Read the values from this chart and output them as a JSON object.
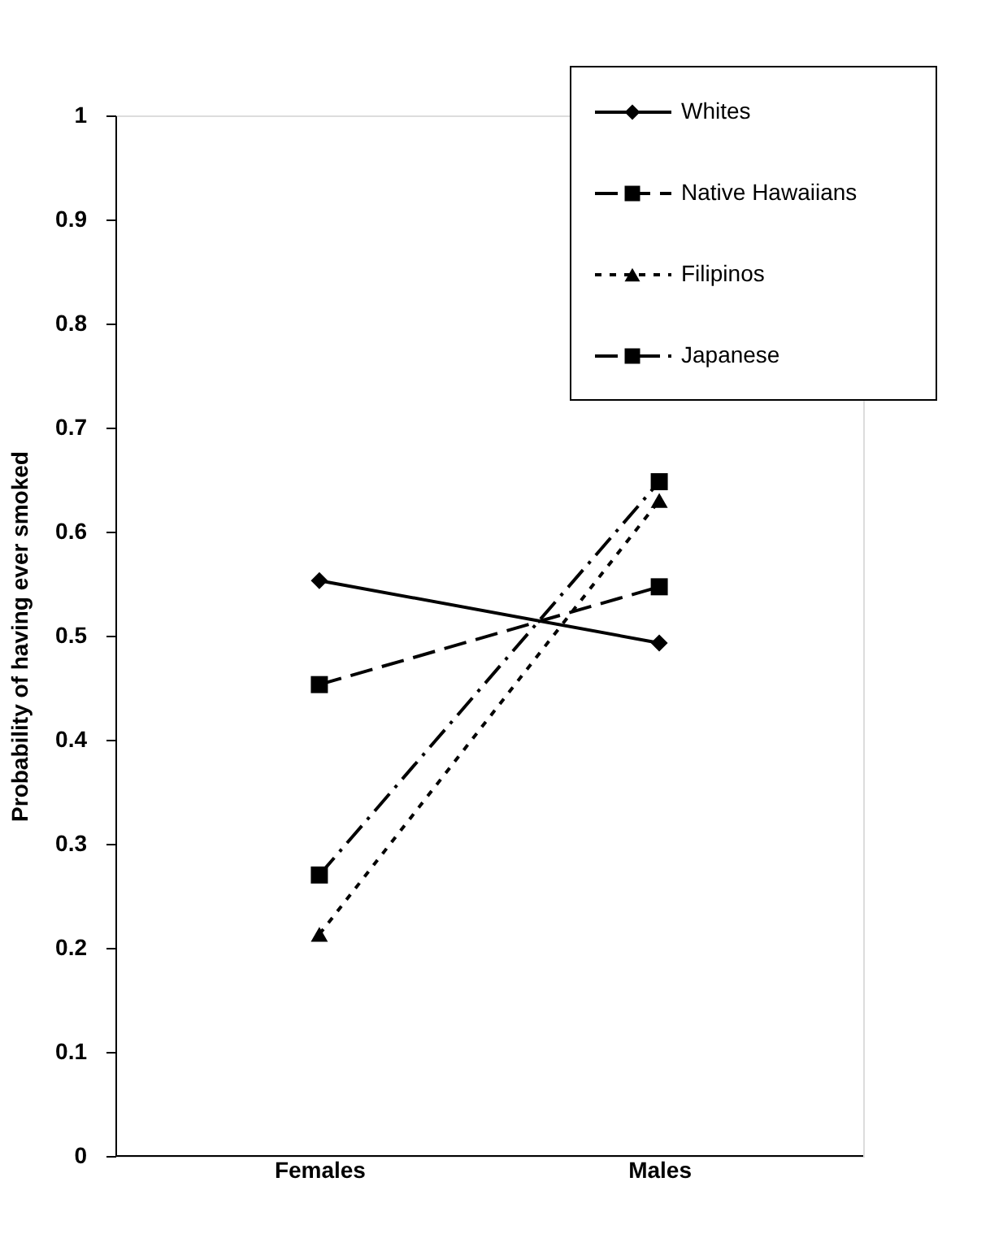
{
  "chart_data": {
    "type": "line",
    "ylabel": "Probability of having ever smoked",
    "categories": [
      "Females",
      "Males"
    ],
    "series": [
      {
        "name": "Whites",
        "color": "#000000",
        "values": [
          0.553,
          0.493
        ],
        "marker": "diamond",
        "line_style": "solid"
      },
      {
        "name": "Native Hawaiians",
        "color": "#000000",
        "values": [
          0.453,
          0.547
        ],
        "marker": "square",
        "line_style": "dashed"
      },
      {
        "name": "Filipinos",
        "color": "#000000",
        "values": [
          0.213,
          0.63
        ],
        "marker": "triangle",
        "line_style": "dotted"
      },
      {
        "name": "Japanese",
        "color": "#000000",
        "values": [
          0.27,
          0.648
        ],
        "marker": "square",
        "line_style": "dashed"
      }
    ],
    "ylim": [
      0,
      1
    ],
    "yticks": [
      0,
      0.1,
      0.2,
      0.3,
      0.4,
      0.5,
      0.6,
      0.7,
      0.8,
      0.9,
      1
    ],
    "grid": false,
    "legend": "top right"
  }
}
